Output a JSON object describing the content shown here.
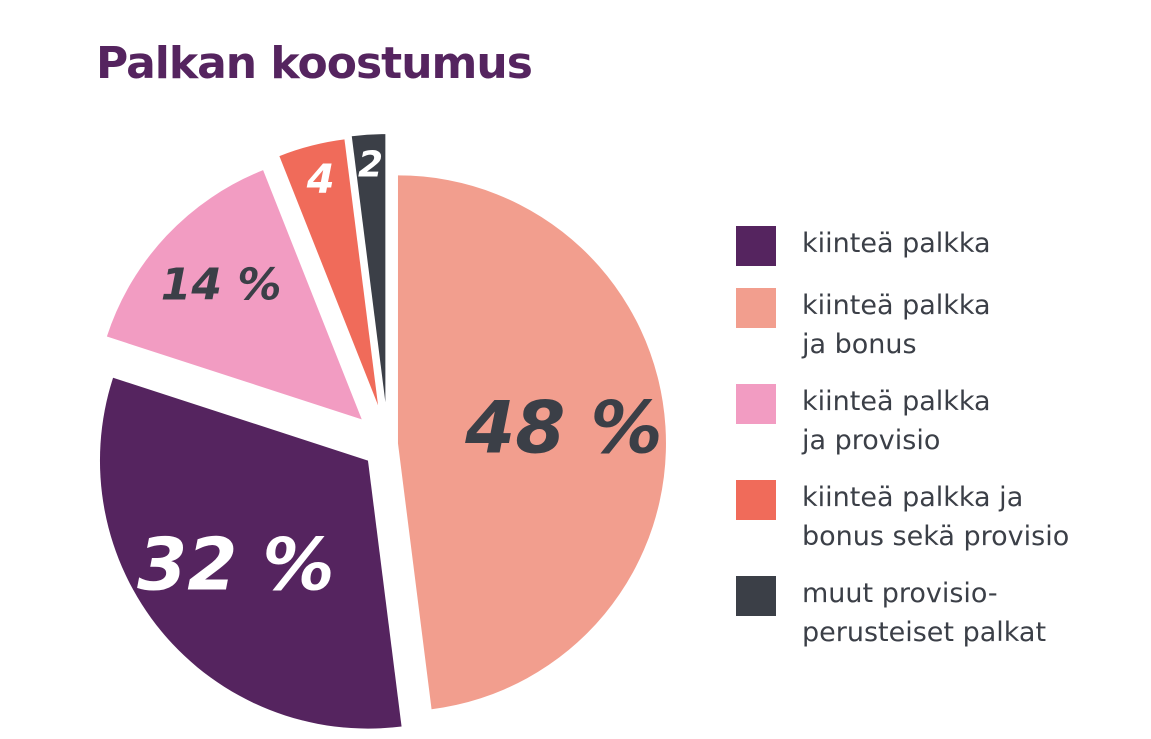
{
  "chart_data": {
    "type": "pie",
    "title": "Palkan koostumus",
    "slices": [
      {
        "label": "kiinteä palkka\nja bonus",
        "value": 48,
        "display": "48 %",
        "color": "#f29e8e",
        "text_color": "#3b3f47"
      },
      {
        "label": "kiinteä palkka",
        "value": 32,
        "display": "32 %",
        "color": "#55245f",
        "text_color": "#ffffff"
      },
      {
        "label": "kiinteä palkka\nja provisio",
        "value": 14,
        "display": "14 %",
        "color": "#f29cc2",
        "text_color": "#3b3f47"
      },
      {
        "label": "kiinteä palkka ja\nbonus sekä provisio",
        "value": 4,
        "display": "4",
        "color": "#f06b5a",
        "text_color": "#ffffff"
      },
      {
        "label": "muut provisio-\nperusteiset palkat",
        "value": 2,
        "display": "2",
        "color": "#3b3f47",
        "text_color": "#ffffff"
      }
    ],
    "legend_order": [
      1,
      0,
      2,
      3,
      4
    ],
    "legend_position": "right"
  }
}
